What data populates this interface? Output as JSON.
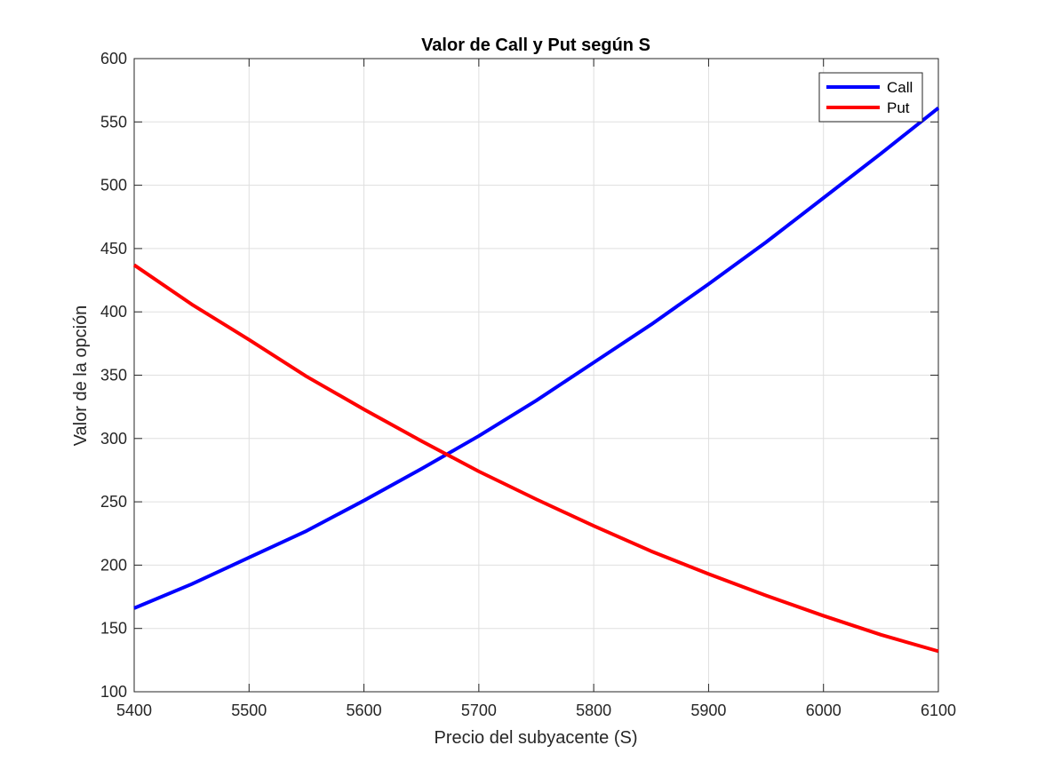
{
  "chart_data": {
    "type": "line",
    "title": "Valor de Call y Put según S",
    "xlabel": "Precio del subyacente (S)",
    "ylabel": "Valor de la opción",
    "xlim": [
      5400,
      6100
    ],
    "ylim": [
      100,
      600
    ],
    "xticks": [
      5400,
      5500,
      5600,
      5700,
      5800,
      5900,
      6000,
      6100
    ],
    "yticks": [
      100,
      150,
      200,
      250,
      300,
      350,
      400,
      450,
      500,
      550,
      600
    ],
    "grid": true,
    "legend_position": "top-right",
    "x": [
      5400,
      5450,
      5500,
      5550,
      5600,
      5650,
      5700,
      5750,
      5800,
      5850,
      5900,
      5950,
      6000,
      6050,
      6100
    ],
    "series": [
      {
        "name": "Call",
        "color": "#0000ff",
        "values": [
          166,
          185,
          206,
          227,
          251,
          276,
          302,
          330,
          360,
          390,
          422,
          455,
          490,
          525,
          561
        ]
      },
      {
        "name": "Put",
        "color": "#ff0000",
        "values": [
          437,
          406,
          378,
          349,
          323,
          298,
          274,
          252,
          231,
          211,
          193,
          176,
          160,
          145,
          132
        ]
      }
    ]
  }
}
